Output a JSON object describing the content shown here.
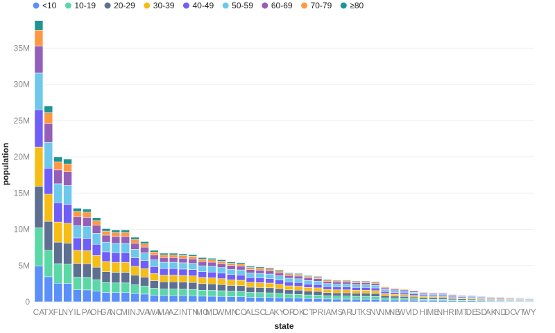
{
  "chart_data": {
    "type": "bar",
    "stacked": true,
    "xlabel": "state",
    "ylabel": "population",
    "ylim": [
      0,
      38000000
    ],
    "yticks": [
      0,
      5000000,
      10000000,
      15000000,
      20000000,
      25000000,
      30000000,
      35000000
    ],
    "ytick_labels": [
      "0",
      "5M",
      "10M",
      "15M",
      "20M",
      "25M",
      "30M",
      "35M"
    ],
    "grid": true,
    "legend_position": "top-left",
    "categories": [
      "CA",
      "TX",
      "FL",
      "NY",
      "IL",
      "PA",
      "OH",
      "GA",
      "NC",
      "MI",
      "NJ",
      "VA",
      "WA",
      "MA",
      "AZ",
      "IN",
      "TN",
      "MO",
      "MD",
      "WI",
      "MN",
      "CO",
      "AL",
      "SC",
      "LA",
      "KY",
      "OR",
      "OK",
      "CT",
      "PR",
      "IA",
      "MS",
      "AR",
      "UT",
      "KS",
      "NV",
      "NM",
      "NE",
      "WV",
      "ID",
      "HI",
      "ME",
      "NH",
      "RI",
      "MT",
      "DE",
      "SD",
      "AK",
      "ND",
      "DC",
      "VT",
      "WY"
    ],
    "totals": [
      38800000,
      27000000,
      20000000,
      19700000,
      12900000,
      12800000,
      11600000,
      10100000,
      9900000,
      9900000,
      8900000,
      8300000,
      7100000,
      6700000,
      6700000,
      6600000,
      6500000,
      6100000,
      6000000,
      5800000,
      5500000,
      5400000,
      4900000,
      4800000,
      4700000,
      4400000,
      4000000,
      3900000,
      3600000,
      3500000,
      3100000,
      3000000,
      3000000,
      2900000,
      2900000,
      2800000,
      2100000,
      1900000,
      1800000,
      1600000,
      1400000,
      1300000,
      1300000,
      1100000,
      1000000,
      950000,
      850000,
      750000,
      740000,
      650000,
      630000,
      590000
    ],
    "series": [
      {
        "name": "<10",
        "color": "#5b8ff9",
        "share": 0.128
      },
      {
        "name": "10-19",
        "color": "#5ad8a6",
        "share": 0.135
      },
      {
        "name": "20-29",
        "color": "#5d7092",
        "share": 0.148
      },
      {
        "name": "30-39",
        "color": "#f6bd16",
        "share": 0.139
      },
      {
        "name": "40-49",
        "color": "#6f5ef9",
        "share": 0.133
      },
      {
        "name": "50-59",
        "color": "#6dc8ec",
        "share": 0.131
      },
      {
        "name": "60-69",
        "color": "#945fb9",
        "share": 0.096
      },
      {
        "name": "70-79",
        "color": "#ff9845",
        "share": 0.056
      },
      {
        "name": "≥80",
        "color": "#1e9493",
        "share": 0.034
      }
    ]
  }
}
